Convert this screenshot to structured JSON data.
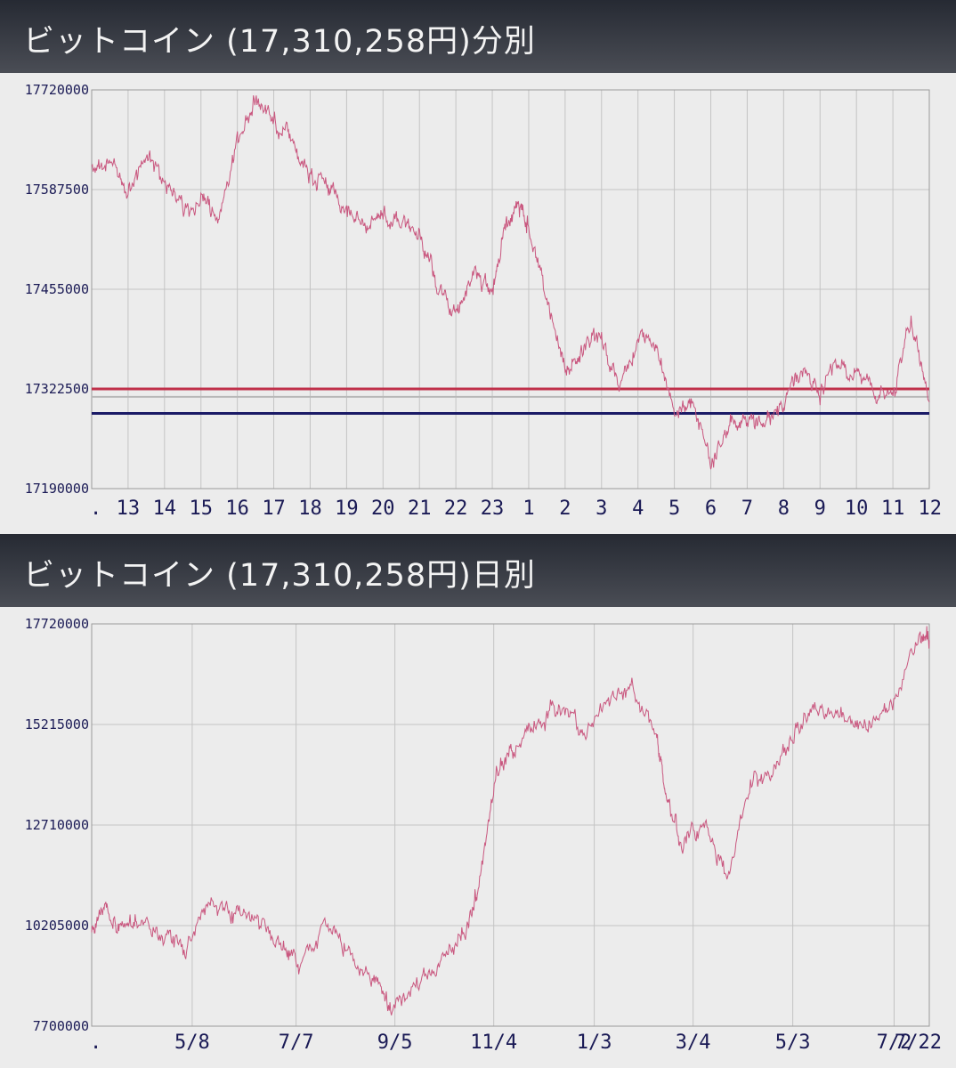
{
  "chart_data": [
    {
      "type": "line",
      "title": "ビットコイン (17,310,258円)分別",
      "x_tick_labels": [
        ".",
        "13",
        "14",
        "15",
        "16",
        "17",
        "18",
        "19",
        "20",
        "21",
        "22",
        "23",
        "1",
        "2",
        "3",
        "4",
        "5",
        "6",
        "7",
        "8",
        "9",
        "10",
        "11",
        "12"
      ],
      "y_tick_labels": [
        "17720000",
        "17587500",
        "17455000",
        "17322500",
        "17190000"
      ],
      "ylim": [
        17190000,
        17720000
      ],
      "grid": true,
      "reference_lines": [
        {
          "value": 17322500,
          "color": "#c0304a"
        },
        {
          "value": 17312000,
          "color": "#b8b8b8"
        },
        {
          "value": 17290000,
          "color": "#1a1a66"
        }
      ],
      "series": [
        {
          "color": "#c9577f",
          "x": [
            0,
            0.5,
            1,
            1.5,
            2,
            2.5,
            3,
            3.5,
            4,
            4.5,
            5,
            5.5,
            6,
            6.5,
            7,
            7.5,
            8,
            8.5,
            9,
            9.5,
            10,
            10.5,
            11,
            11.3,
            11.7,
            12,
            12.5,
            13,
            13.5,
            14,
            14.5,
            15,
            15.5,
            16,
            16.5,
            17,
            17.5,
            18,
            18.5,
            19,
            19.5,
            20,
            20.5,
            21,
            21.5,
            22,
            22.5,
            23
          ],
          "y": [
            17615000,
            17625000,
            17590000,
            17630000,
            17600000,
            17565000,
            17570000,
            17555000,
            17650000,
            17710000,
            17680000,
            17660000,
            17600000,
            17590000,
            17560000,
            17540000,
            17555000,
            17540000,
            17530000,
            17460000,
            17420000,
            17480000,
            17450000,
            17530000,
            17570000,
            17540000,
            17440000,
            17340000,
            17380000,
            17390000,
            17330000,
            17390000,
            17380000,
            17290000,
            17300000,
            17220000,
            17275000,
            17280000,
            17280000,
            17300000,
            17350000,
            17320000,
            17360000,
            17340000,
            17320000,
            17310000,
            17420000,
            17305000
          ]
        }
      ]
    },
    {
      "type": "line",
      "title": "ビットコイン (17,310,258円)日別",
      "x_tick_labels": [
        ".",
        "5/8",
        "7/7",
        "9/5",
        "11/4",
        "1/3",
        "3/4",
        "5/3",
        "7/2",
        "7/22"
      ],
      "y_tick_labels": [
        "17720000",
        "15215000",
        "12710000",
        "10205000",
        "7700000"
      ],
      "ylim": [
        7700000,
        17720000
      ],
      "grid": true,
      "series": [
        {
          "color": "#c9577f",
          "x": [
            0,
            0.15,
            0.3,
            0.5,
            0.75,
            1,
            1.25,
            1.5,
            1.75,
            2,
            2.2,
            2.5,
            2.75,
            3,
            3.2,
            3.5,
            3.75,
            4,
            4.1,
            4.3,
            4.5,
            4.75,
            5,
            5.25,
            5.5,
            5.75,
            6,
            6.1,
            6.25,
            6.5,
            6.75,
            7,
            7.25,
            7.5,
            7.75,
            8,
            8.25,
            8.5,
            8.8,
            8.9
          ],
          "y": [
            10200000,
            10600000,
            10100000,
            10400000,
            10000000,
            9600000,
            10800000,
            10500000,
            10300000,
            9800000,
            9200000,
            10300000,
            9500000,
            8900000,
            8100000,
            8800000,
            9300000,
            10200000,
            11000000,
            14000000,
            14600000,
            15200000,
            15700000,
            15000000,
            15900000,
            16000000,
            15000000,
            13500000,
            12300000,
            12700000,
            11600000,
            13700000,
            14000000,
            15200000,
            15600000,
            15400000,
            15100000,
            15500000,
            17500000,
            17310000
          ]
        }
      ]
    }
  ]
}
